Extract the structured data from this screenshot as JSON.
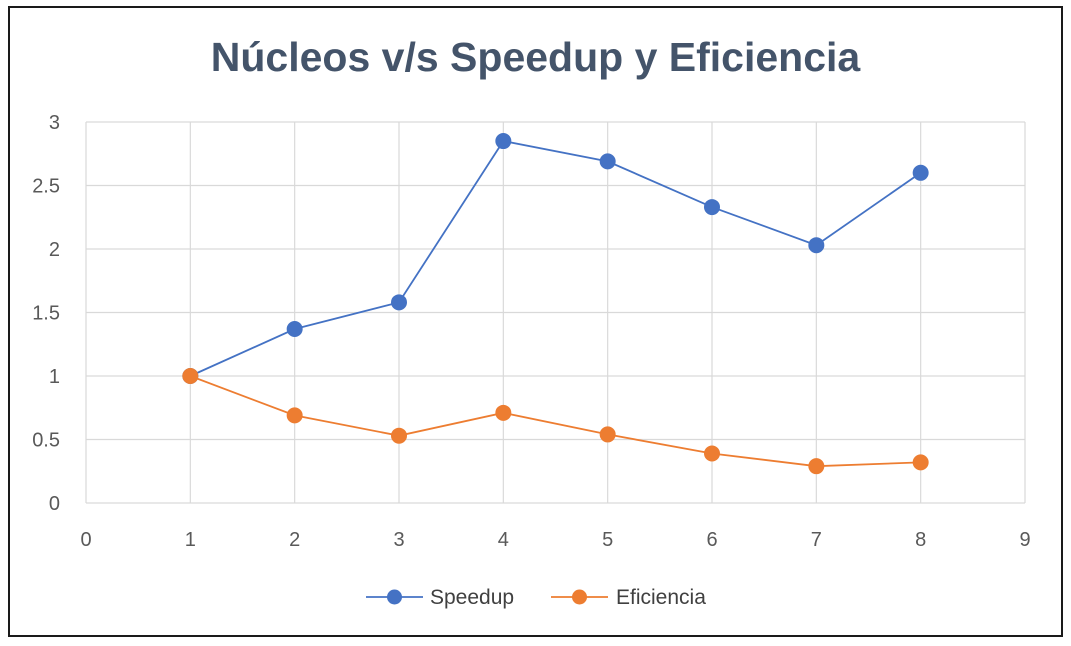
{
  "chart_data": {
    "type": "scatter",
    "title": "Núcleos v/s Speedup y Eficiencia",
    "xlabel": "",
    "ylabel": "",
    "xlim": [
      0,
      9
    ],
    "ylim": [
      0,
      3
    ],
    "xticks": [
      0,
      1,
      2,
      3,
      4,
      5,
      6,
      7,
      8,
      9
    ],
    "yticks": [
      0,
      0.5,
      1,
      1.5,
      2,
      2.5,
      3
    ],
    "ytick_labels": [
      "0",
      "0.5",
      "1",
      "1.5",
      "2",
      "2.5",
      "3"
    ],
    "grid": true,
    "legend_position": "bottom",
    "series": [
      {
        "name": "Speedup",
        "color": "#4472c4",
        "x": [
          1,
          2,
          3,
          4,
          5,
          6,
          7,
          8
        ],
        "y": [
          1.0,
          1.37,
          1.58,
          2.85,
          2.69,
          2.33,
          2.03,
          2.6
        ]
      },
      {
        "name": "Eficiencia",
        "color": "#ed7d31",
        "x": [
          1,
          2,
          3,
          4,
          5,
          6,
          7,
          8
        ],
        "y": [
          1.0,
          0.69,
          0.53,
          0.71,
          0.54,
          0.39,
          0.29,
          0.32
        ]
      }
    ]
  }
}
